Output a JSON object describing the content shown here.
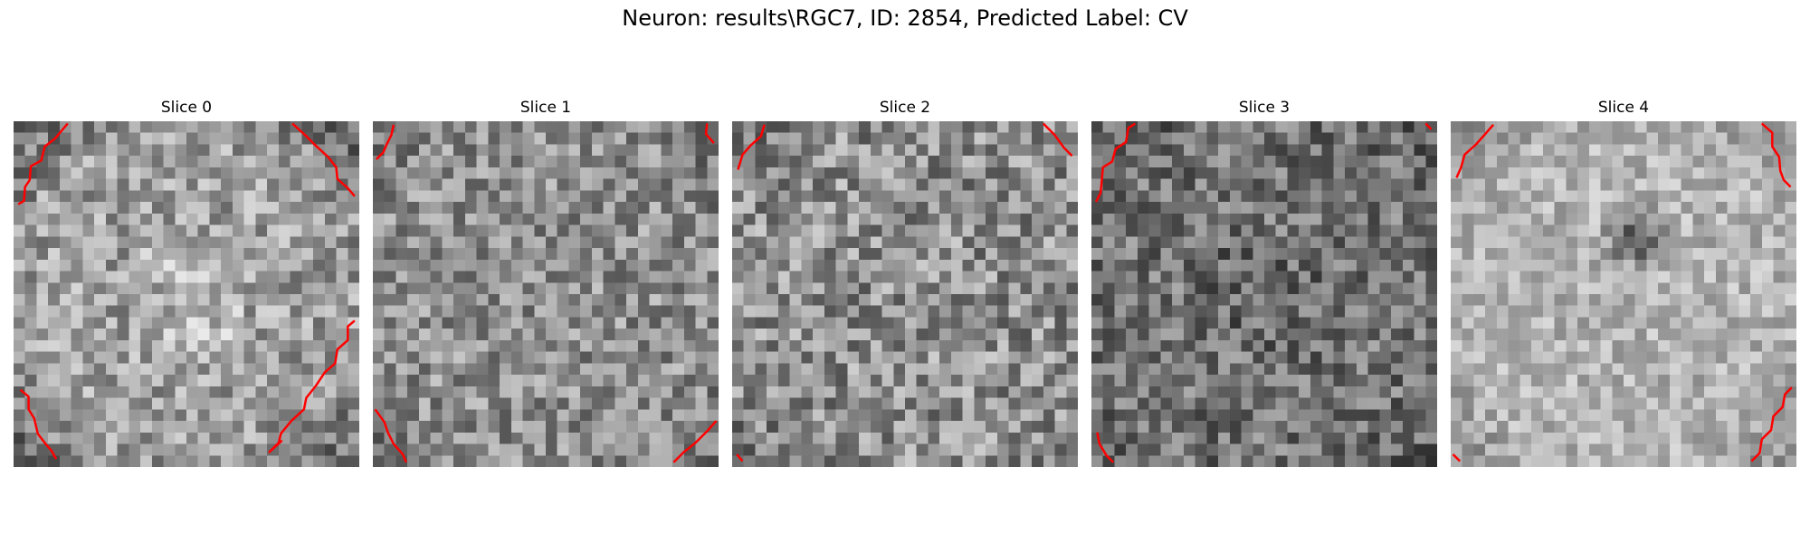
{
  "figure": {
    "title": "Neuron: results\\RGC7, ID: 2854, Predicted Label: CV"
  },
  "panels": [
    {
      "title": "Slice 0",
      "mean": 0.62,
      "contrast": 0.22,
      "center_boost": 0.08,
      "edge_dark": 0.22,
      "seed": 11
    },
    {
      "title": "Slice 1",
      "mean": 0.56,
      "contrast": 0.22,
      "center_boost": 0.0,
      "edge_dark": 0.08,
      "seed": 23
    },
    {
      "title": "Slice 2",
      "mean": 0.56,
      "contrast": 0.25,
      "center_boost": 0.0,
      "edge_dark": 0.05,
      "seed": 37
    },
    {
      "title": "Slice 3",
      "mean": 0.45,
      "contrast": 0.22,
      "center_boost": -0.04,
      "edge_dark": 0.08,
      "seed": 41
    },
    {
      "title": "Slice 4",
      "mean": 0.7,
      "contrast": 0.16,
      "center_boost": 0.0,
      "edge_dark": 0.12,
      "seed": 53
    }
  ],
  "overlay_color": "#ff0000",
  "colormap": "gray"
}
